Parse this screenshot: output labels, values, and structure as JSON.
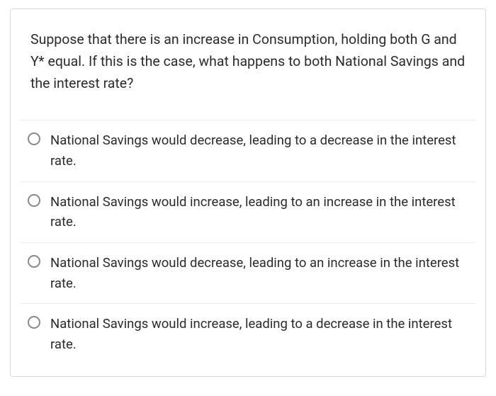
{
  "question": {
    "prompt": "Suppose that there is an increase in Consumption, holding both G and Y* equal. If this is the case, what happens to both National Savings and the interest rate?",
    "options": [
      {
        "text": "National Savings would decrease, leading to a decrease in the interest rate."
      },
      {
        "text": "National Savings would increase, leading to an increase in the interest rate."
      },
      {
        "text": "National Savings would decrease, leading to an increase in the interest rate."
      },
      {
        "text": "National Savings would increase, leading to a decrease in the interest rate."
      }
    ]
  },
  "style": {
    "card_border_color": "#d9d9d9",
    "option_divider_color": "#ececec",
    "text_color": "#2b2b2b",
    "radio_border_color": "#888888",
    "background_color": "#ffffff",
    "question_fontsize": 19.5,
    "option_fontsize": 18.5
  }
}
